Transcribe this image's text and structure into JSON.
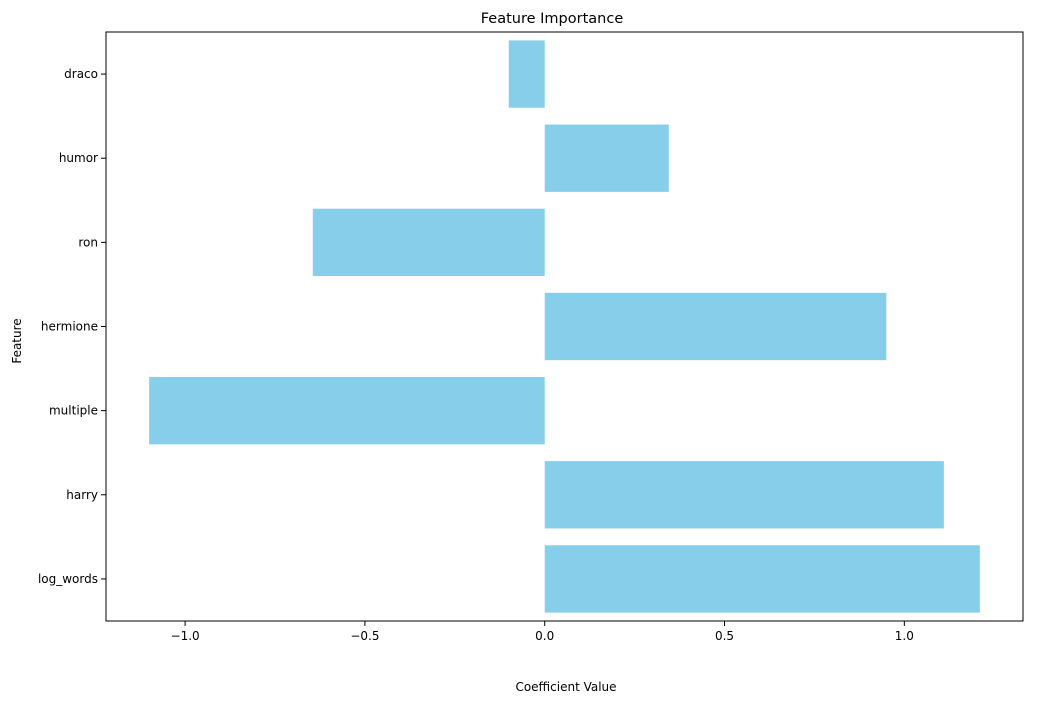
{
  "chart_data": {
    "type": "bar",
    "orientation": "horizontal",
    "title": "Feature Importance",
    "xlabel": "Coefficient Value",
    "ylabel": "Feature",
    "categories": [
      "log_words",
      "harry",
      "multiple",
      "hermione",
      "ron",
      "humor",
      "draco"
    ],
    "values": [
      1.21,
      1.11,
      -1.1,
      0.95,
      -0.645,
      0.345,
      -0.1
    ],
    "xlim": [
      -1.22,
      1.33
    ],
    "xticks": [
      -1.0,
      -0.5,
      0.0,
      0.5,
      1.0
    ],
    "xtick_labels": [
      "−1.0",
      "−0.5",
      "0.0",
      "0.5",
      "1.0"
    ],
    "bar_color": "#87ceeb",
    "grid": false
  }
}
